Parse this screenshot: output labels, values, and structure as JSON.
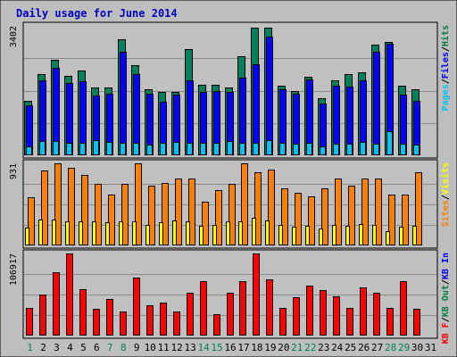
{
  "chart_data": {
    "type": "bar",
    "title": "Daily usage for June 2014",
    "days": [
      "1",
      "2",
      "3",
      "4",
      "5",
      "6",
      "7",
      "8",
      "9",
      "10",
      "11",
      "12",
      "13",
      "14",
      "15",
      "16",
      "17",
      "18",
      "19",
      "20",
      "21",
      "22",
      "23",
      "24",
      "25",
      "26",
      "27",
      "28",
      "29",
      "30",
      "31"
    ],
    "weekend_days": [
      1,
      7,
      8,
      14,
      15,
      21,
      22,
      28,
      29
    ],
    "panels": [
      {
        "max_label": "3402",
        "max": 3402,
        "legend": [
          {
            "label": "Hits",
            "color": "#008040"
          },
          {
            "label": "/",
            "color": "#000000"
          },
          {
            "label": "Files",
            "color": "#0000ff"
          },
          {
            "label": "/",
            "color": "#000000"
          },
          {
            "label": "Pages",
            "color": "#00c0ff"
          }
        ],
        "series": [
          {
            "name": "Hits",
            "color": "#00805c",
            "values": [
              1420,
              2140,
              2500,
              2080,
              2240,
              1790,
              1790,
              3050,
              2370,
              1730,
              1670,
              1670,
              2790,
              1860,
              1860,
              1790,
              2610,
              3360,
              3360,
              1840,
              1700,
              2070,
              1510,
              1960,
              2140,
              2180,
              2900,
              2980,
              1820,
              1730,
              null
            ]
          },
          {
            "name": "Files",
            "color": "#0000ff",
            "values": [
              1310,
              1960,
              2300,
              1900,
              1950,
              1580,
              1610,
              2730,
              2140,
              1620,
              1400,
              1600,
              1980,
              1660,
              1690,
              1660,
              2050,
              2390,
              3120,
              1740,
              1620,
              1990,
              1360,
              1820,
              1810,
              1960,
              2730,
              2940,
              1600,
              1430,
              null
            ]
          },
          {
            "name": "Pages",
            "color": "#00c0ff",
            "values": [
              230,
              370,
              370,
              330,
              330,
              400,
              350,
              330,
              330,
              270,
              330,
              350,
              340,
              340,
              340,
              370,
              330,
              340,
              410,
              330,
              310,
              330,
              240,
              310,
              310,
              360,
              310,
              630,
              310,
              270,
              null
            ]
          }
        ]
      },
      {
        "max_label": "931",
        "max": 931,
        "legend": [
          {
            "label": "Visits",
            "color": "#ffff00"
          },
          {
            "label": "/",
            "color": "#000000"
          },
          {
            "label": "Sites",
            "color": "#ff8000"
          }
        ],
        "series": [
          {
            "name": "Sites",
            "color": "#ff8000",
            "values": [
              550,
              850,
              930,
              880,
              800,
              700,
              580,
              700,
              930,
              680,
              710,
              760,
              760,
              500,
              630,
              700,
              930,
              830,
              860,
              650,
              600,
              560,
              650,
              760,
              680,
              760,
              760,
              580,
              580,
              830,
              null
            ]
          },
          {
            "name": "Visits",
            "color": "#ffff00",
            "values": [
              200,
              290,
              290,
              270,
              270,
              270,
              260,
              270,
              270,
              230,
              260,
              280,
              270,
              220,
              230,
              270,
              270,
              310,
              280,
              230,
              210,
              220,
              190,
              230,
              220,
              240,
              230,
              160,
              210,
              220,
              null
            ]
          }
        ]
      },
      {
        "max_label": "106917",
        "max": 106917,
        "legend": [
          {
            "label": "KB In",
            "color": "#0000ff"
          },
          {
            "label": "/",
            "color": "#000000"
          },
          {
            "label": "KB Out",
            "color": "#008040"
          },
          {
            "label": "/",
            "color": "#000000"
          },
          {
            "label": "KB F",
            "color": "#ff0000"
          }
        ],
        "series": [
          {
            "name": "KB F",
            "color": "#ff0000",
            "values": [
              36000,
              54000,
              82000,
              106917,
              60000,
              35000,
              48000,
              31000,
              75000,
              39000,
              43000,
              31000,
              56000,
              71000,
              28000,
              56000,
              71000,
              106917,
              73000,
              36000,
              50000,
              65000,
              59000,
              51000,
              36000,
              63000,
              56000,
              36000,
              71000,
              35000,
              null
            ]
          }
        ]
      }
    ]
  }
}
